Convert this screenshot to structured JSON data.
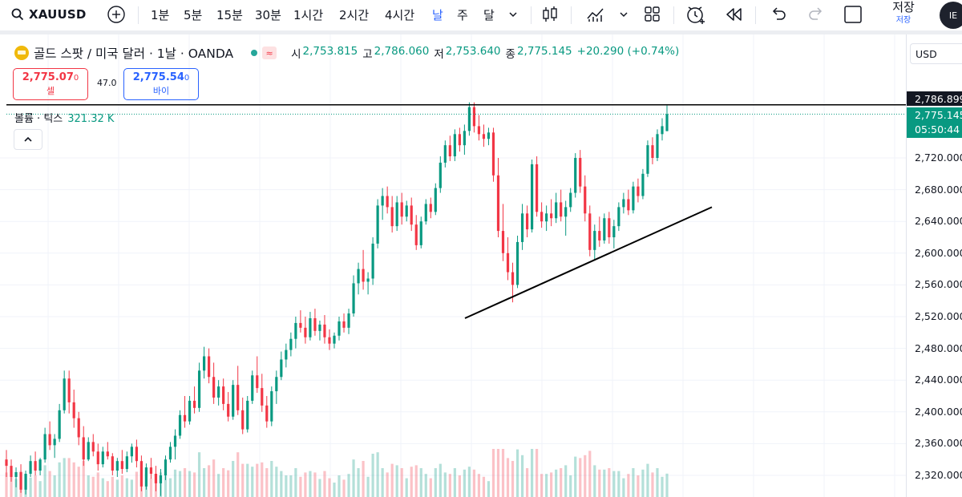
{
  "toolbar": {
    "symbol": "XAUUSD",
    "intervals": [
      "1분",
      "5분",
      "15분",
      "30분",
      "1시간",
      "2시간",
      "4시간",
      "날",
      "주",
      "달"
    ],
    "active_interval": "날",
    "save_label": "저장",
    "save_sub_label": "저장",
    "avatar_text": "IE"
  },
  "legend": {
    "title": "골드 스팟 / 미국 달러 · 1날 · OANDA",
    "open_label": "시",
    "open": "2,753.815",
    "high_label": "고",
    "high": "2,786.060",
    "low_label": "저",
    "low": "2,753.640",
    "close_label": "종",
    "close": "2,775.145",
    "change": "+20.290 (+0.74%)"
  },
  "trade": {
    "sell_price_main": "2,775.07",
    "sell_price_small": "0",
    "sell_label": "셀",
    "spread": "47.0",
    "buy_price_main": "2,775.54",
    "buy_price_small": "0",
    "buy_label": "바이"
  },
  "volume": {
    "label": "볼륨 · 틱스",
    "value": "321.32 K"
  },
  "price_axis": {
    "currency": "USD",
    "ticks": [
      "2,720.000",
      "2,680.000",
      "2,640.000",
      "2,600.000",
      "2,560.000",
      "2,520.000",
      "2,480.000",
      "2,440.000",
      "2,400.000",
      "2,360.000",
      "2,320.000"
    ],
    "high_line_label": "2,786.899",
    "last_price_label": "2,775.145",
    "countdown": "05:50:44"
  },
  "colors": {
    "up": "#089981",
    "down": "#f23645",
    "accent": "#2962ff"
  },
  "chart_data": {
    "type": "candlestick",
    "ylim": [
      2300,
      2800
    ],
    "price_line_high": 2786.9,
    "last_price": 2775.145,
    "trendline": {
      "from_price": 2518,
      "to_price": 2658
    },
    "candles": [
      {
        "o": 2340,
        "h": 2352,
        "l": 2318,
        "c": 2332
      },
      {
        "o": 2332,
        "h": 2340,
        "l": 2312,
        "c": 2318
      },
      {
        "o": 2318,
        "h": 2330,
        "l": 2305,
        "c": 2324
      },
      {
        "o": 2324,
        "h": 2334,
        "l": 2298,
        "c": 2302
      },
      {
        "o": 2302,
        "h": 2326,
        "l": 2296,
        "c": 2322
      },
      {
        "o": 2322,
        "h": 2345,
        "l": 2318,
        "c": 2338
      },
      {
        "o": 2338,
        "h": 2350,
        "l": 2320,
        "c": 2326
      },
      {
        "o": 2326,
        "h": 2342,
        "l": 2320,
        "c": 2340
      },
      {
        "o": 2340,
        "h": 2380,
        "l": 2336,
        "c": 2372
      },
      {
        "o": 2372,
        "h": 2388,
        "l": 2352,
        "c": 2358
      },
      {
        "o": 2358,
        "h": 2372,
        "l": 2342,
        "c": 2366
      },
      {
        "o": 2366,
        "h": 2410,
        "l": 2362,
        "c": 2402
      },
      {
        "o": 2402,
        "h": 2452,
        "l": 2398,
        "c": 2442
      },
      {
        "o": 2442,
        "h": 2452,
        "l": 2398,
        "c": 2412
      },
      {
        "o": 2412,
        "h": 2428,
        "l": 2380,
        "c": 2392
      },
      {
        "o": 2392,
        "h": 2400,
        "l": 2358,
        "c": 2368
      },
      {
        "o": 2368,
        "h": 2382,
        "l": 2332,
        "c": 2340
      },
      {
        "o": 2340,
        "h": 2368,
        "l": 2338,
        "c": 2362
      },
      {
        "o": 2362,
        "h": 2372,
        "l": 2344,
        "c": 2350
      },
      {
        "o": 2350,
        "h": 2360,
        "l": 2326,
        "c": 2334
      },
      {
        "o": 2334,
        "h": 2356,
        "l": 2330,
        "c": 2350
      },
      {
        "o": 2350,
        "h": 2362,
        "l": 2340,
        "c": 2344
      },
      {
        "o": 2344,
        "h": 2348,
        "l": 2320,
        "c": 2326
      },
      {
        "o": 2326,
        "h": 2342,
        "l": 2318,
        "c": 2338
      },
      {
        "o": 2338,
        "h": 2352,
        "l": 2322,
        "c": 2328
      },
      {
        "o": 2328,
        "h": 2350,
        "l": 2324,
        "c": 2344
      },
      {
        "o": 2344,
        "h": 2360,
        "l": 2336,
        "c": 2356
      },
      {
        "o": 2356,
        "h": 2365,
        "l": 2330,
        "c": 2338
      },
      {
        "o": 2338,
        "h": 2345,
        "l": 2300,
        "c": 2306
      },
      {
        "o": 2306,
        "h": 2335,
        "l": 2302,
        "c": 2330
      },
      {
        "o": 2330,
        "h": 2342,
        "l": 2316,
        "c": 2322
      },
      {
        "o": 2322,
        "h": 2332,
        "l": 2300,
        "c": 2310
      },
      {
        "o": 2310,
        "h": 2328,
        "l": 2294,
        "c": 2320
      },
      {
        "o": 2320,
        "h": 2345,
        "l": 2314,
        "c": 2340
      },
      {
        "o": 2340,
        "h": 2362,
        "l": 2336,
        "c": 2356
      },
      {
        "o": 2356,
        "h": 2378,
        "l": 2340,
        "c": 2370
      },
      {
        "o": 2370,
        "h": 2402,
        "l": 2366,
        "c": 2396
      },
      {
        "o": 2396,
        "h": 2420,
        "l": 2380,
        "c": 2388
      },
      {
        "o": 2388,
        "h": 2420,
        "l": 2384,
        "c": 2414
      },
      {
        "o": 2414,
        "h": 2432,
        "l": 2398,
        "c": 2405
      },
      {
        "o": 2405,
        "h": 2462,
        "l": 2400,
        "c": 2452
      },
      {
        "o": 2452,
        "h": 2482,
        "l": 2442,
        "c": 2470
      },
      {
        "o": 2470,
        "h": 2480,
        "l": 2436,
        "c": 2444
      },
      {
        "o": 2444,
        "h": 2462,
        "l": 2410,
        "c": 2418
      },
      {
        "o": 2418,
        "h": 2440,
        "l": 2408,
        "c": 2432
      },
      {
        "o": 2432,
        "h": 2442,
        "l": 2402,
        "c": 2410
      },
      {
        "o": 2410,
        "h": 2425,
        "l": 2388,
        "c": 2394
      },
      {
        "o": 2394,
        "h": 2440,
        "l": 2390,
        "c": 2434
      },
      {
        "o": 2434,
        "h": 2458,
        "l": 2396,
        "c": 2402
      },
      {
        "o": 2402,
        "h": 2418,
        "l": 2372,
        "c": 2378
      },
      {
        "o": 2378,
        "h": 2420,
        "l": 2374,
        "c": 2414
      },
      {
        "o": 2414,
        "h": 2452,
        "l": 2410,
        "c": 2446
      },
      {
        "o": 2446,
        "h": 2470,
        "l": 2424,
        "c": 2430
      },
      {
        "o": 2430,
        "h": 2448,
        "l": 2400,
        "c": 2408
      },
      {
        "o": 2408,
        "h": 2420,
        "l": 2380,
        "c": 2388
      },
      {
        "o": 2388,
        "h": 2432,
        "l": 2382,
        "c": 2426
      },
      {
        "o": 2426,
        "h": 2452,
        "l": 2410,
        "c": 2444
      },
      {
        "o": 2444,
        "h": 2476,
        "l": 2440,
        "c": 2466
      },
      {
        "o": 2466,
        "h": 2486,
        "l": 2456,
        "c": 2478
      },
      {
        "o": 2478,
        "h": 2500,
        "l": 2470,
        "c": 2492
      },
      {
        "o": 2492,
        "h": 2520,
        "l": 2480,
        "c": 2512
      },
      {
        "o": 2512,
        "h": 2528,
        "l": 2500,
        "c": 2506
      },
      {
        "o": 2506,
        "h": 2520,
        "l": 2486,
        "c": 2494
      },
      {
        "o": 2494,
        "h": 2526,
        "l": 2490,
        "c": 2518
      },
      {
        "o": 2518,
        "h": 2530,
        "l": 2496,
        "c": 2502
      },
      {
        "o": 2502,
        "h": 2515,
        "l": 2490,
        "c": 2510
      },
      {
        "o": 2510,
        "h": 2522,
        "l": 2486,
        "c": 2494
      },
      {
        "o": 2494,
        "h": 2504,
        "l": 2478,
        "c": 2486
      },
      {
        "o": 2486,
        "h": 2500,
        "l": 2480,
        "c": 2496
      },
      {
        "o": 2496,
        "h": 2520,
        "l": 2490,
        "c": 2514
      },
      {
        "o": 2514,
        "h": 2524,
        "l": 2500,
        "c": 2506
      },
      {
        "o": 2506,
        "h": 2530,
        "l": 2498,
        "c": 2524
      },
      {
        "o": 2524,
        "h": 2572,
        "l": 2520,
        "c": 2562
      },
      {
        "o": 2562,
        "h": 2588,
        "l": 2548,
        "c": 2580
      },
      {
        "o": 2580,
        "h": 2604,
        "l": 2554,
        "c": 2564
      },
      {
        "o": 2564,
        "h": 2576,
        "l": 2548,
        "c": 2568
      },
      {
        "o": 2568,
        "h": 2620,
        "l": 2560,
        "c": 2612
      },
      {
        "o": 2612,
        "h": 2668,
        "l": 2606,
        "c": 2660
      },
      {
        "o": 2660,
        "h": 2682,
        "l": 2642,
        "c": 2672
      },
      {
        "o": 2672,
        "h": 2684,
        "l": 2650,
        "c": 2658
      },
      {
        "o": 2658,
        "h": 2672,
        "l": 2626,
        "c": 2634
      },
      {
        "o": 2634,
        "h": 2672,
        "l": 2628,
        "c": 2664
      },
      {
        "o": 2664,
        "h": 2676,
        "l": 2636,
        "c": 2646
      },
      {
        "o": 2646,
        "h": 2666,
        "l": 2640,
        "c": 2660
      },
      {
        "o": 2660,
        "h": 2670,
        "l": 2628,
        "c": 2636
      },
      {
        "o": 2636,
        "h": 2648,
        "l": 2604,
        "c": 2610
      },
      {
        "o": 2610,
        "h": 2646,
        "l": 2606,
        "c": 2640
      },
      {
        "o": 2640,
        "h": 2668,
        "l": 2636,
        "c": 2662
      },
      {
        "o": 2662,
        "h": 2670,
        "l": 2644,
        "c": 2652
      },
      {
        "o": 2652,
        "h": 2688,
        "l": 2648,
        "c": 2682
      },
      {
        "o": 2682,
        "h": 2722,
        "l": 2676,
        "c": 2714
      },
      {
        "o": 2714,
        "h": 2742,
        "l": 2708,
        "c": 2736
      },
      {
        "o": 2736,
        "h": 2748,
        "l": 2716,
        "c": 2722
      },
      {
        "o": 2722,
        "h": 2756,
        "l": 2716,
        "c": 2750
      },
      {
        "o": 2750,
        "h": 2758,
        "l": 2728,
        "c": 2736
      },
      {
        "o": 2736,
        "h": 2762,
        "l": 2724,
        "c": 2754
      },
      {
        "o": 2754,
        "h": 2790,
        "l": 2748,
        "c": 2784
      },
      {
        "o": 2784,
        "h": 2790,
        "l": 2752,
        "c": 2760
      },
      {
        "o": 2760,
        "h": 2774,
        "l": 2742,
        "c": 2750
      },
      {
        "o": 2750,
        "h": 2762,
        "l": 2734,
        "c": 2744
      },
      {
        "o": 2744,
        "h": 2758,
        "l": 2736,
        "c": 2752
      },
      {
        "o": 2752,
        "h": 2758,
        "l": 2690,
        "c": 2698
      },
      {
        "o": 2698,
        "h": 2720,
        "l": 2620,
        "c": 2628
      },
      {
        "o": 2628,
        "h": 2662,
        "l": 2590,
        "c": 2600
      },
      {
        "o": 2600,
        "h": 2620,
        "l": 2566,
        "c": 2576
      },
      {
        "o": 2576,
        "h": 2588,
        "l": 2538,
        "c": 2560
      },
      {
        "o": 2560,
        "h": 2622,
        "l": 2556,
        "c": 2614
      },
      {
        "o": 2614,
        "h": 2662,
        "l": 2604,
        "c": 2650
      },
      {
        "o": 2650,
        "h": 2660,
        "l": 2620,
        "c": 2630
      },
      {
        "o": 2630,
        "h": 2718,
        "l": 2626,
        "c": 2712
      },
      {
        "o": 2712,
        "h": 2722,
        "l": 2646,
        "c": 2652
      },
      {
        "o": 2652,
        "h": 2664,
        "l": 2632,
        "c": 2640
      },
      {
        "o": 2640,
        "h": 2660,
        "l": 2628,
        "c": 2650
      },
      {
        "o": 2650,
        "h": 2668,
        "l": 2634,
        "c": 2644
      },
      {
        "o": 2644,
        "h": 2676,
        "l": 2638,
        "c": 2664
      },
      {
        "o": 2664,
        "h": 2680,
        "l": 2640,
        "c": 2646
      },
      {
        "o": 2646,
        "h": 2666,
        "l": 2622,
        "c": 2658
      },
      {
        "o": 2658,
        "h": 2682,
        "l": 2652,
        "c": 2676
      },
      {
        "o": 2676,
        "h": 2726,
        "l": 2670,
        "c": 2720
      },
      {
        "o": 2720,
        "h": 2730,
        "l": 2676,
        "c": 2684
      },
      {
        "o": 2684,
        "h": 2698,
        "l": 2640,
        "c": 2650
      },
      {
        "o": 2650,
        "h": 2660,
        "l": 2596,
        "c": 2604
      },
      {
        "o": 2604,
        "h": 2636,
        "l": 2592,
        "c": 2628
      },
      {
        "o": 2628,
        "h": 2646,
        "l": 2608,
        "c": 2616
      },
      {
        "o": 2616,
        "h": 2650,
        "l": 2612,
        "c": 2644
      },
      {
        "o": 2644,
        "h": 2652,
        "l": 2612,
        "c": 2620
      },
      {
        "o": 2620,
        "h": 2642,
        "l": 2606,
        "c": 2634
      },
      {
        "o": 2634,
        "h": 2664,
        "l": 2628,
        "c": 2658
      },
      {
        "o": 2658,
        "h": 2676,
        "l": 2650,
        "c": 2668
      },
      {
        "o": 2668,
        "h": 2680,
        "l": 2648,
        "c": 2654
      },
      {
        "o": 2654,
        "h": 2690,
        "l": 2650,
        "c": 2684
      },
      {
        "o": 2684,
        "h": 2694,
        "l": 2664,
        "c": 2672
      },
      {
        "o": 2672,
        "h": 2706,
        "l": 2668,
        "c": 2700
      },
      {
        "o": 2700,
        "h": 2742,
        "l": 2696,
        "c": 2736
      },
      {
        "o": 2736,
        "h": 2746,
        "l": 2712,
        "c": 2720
      },
      {
        "o": 2720,
        "h": 2756,
        "l": 2716,
        "c": 2750
      },
      {
        "o": 2750,
        "h": 2770,
        "l": 2742,
        "c": 2760
      },
      {
        "o": 2753.815,
        "h": 2786.06,
        "l": 2753.64,
        "c": 2775.145
      }
    ]
  }
}
